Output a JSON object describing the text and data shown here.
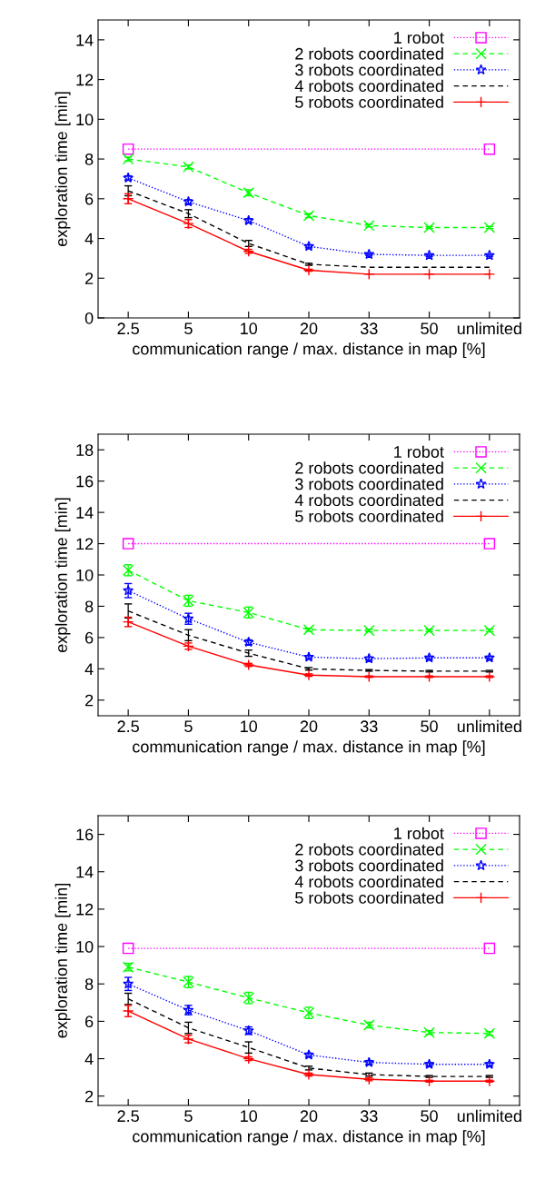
{
  "chart_data": [
    {
      "type": "line",
      "xlabel": "communication range / max. distance in map [%]",
      "ylabel": "exploration time [min]",
      "categories": [
        "2.5",
        "5",
        "10",
        "20",
        "33",
        "50",
        "unlimited"
      ],
      "ylim": [
        0,
        15
      ],
      "yticks": [
        0,
        2,
        4,
        6,
        8,
        10,
        12,
        14
      ],
      "legend": "top right",
      "grid": false,
      "series": [
        {
          "name": "1 robot",
          "color": "#ff00ff",
          "marker": "square",
          "line_style": "dotted",
          "values": [
            8.5,
            null,
            null,
            null,
            null,
            null,
            8.5
          ]
        },
        {
          "name": "2 robots coordinated",
          "color": "#00ff00",
          "marker": "x",
          "line_style": "dashed",
          "values": [
            8.0,
            7.6,
            6.3,
            5.15,
            4.65,
            4.55,
            4.55
          ],
          "errors": [
            0.1,
            0.1,
            0.15,
            0.1,
            0.07,
            0.05,
            0.05
          ]
        },
        {
          "name": "3 robots coordinated",
          "color": "#0000ff",
          "marker": "star",
          "line_style": "dotted",
          "values": [
            7.05,
            5.85,
            4.9,
            3.6,
            3.2,
            3.15,
            3.15
          ],
          "errors": [
            0.1,
            0.1,
            0.1,
            0.07,
            0.05,
            0.05,
            0.05
          ]
        },
        {
          "name": "4 robots coordinated",
          "color": "#000000",
          "marker": "none",
          "line_style": "dashed",
          "values": [
            6.4,
            5.25,
            3.75,
            2.7,
            2.55,
            2.55,
            2.55
          ],
          "errors": [
            0.25,
            0.2,
            0.15,
            0.05,
            null,
            null,
            null
          ]
        },
        {
          "name": "5 robots coordinated",
          "color": "#ff0000",
          "marker": "cross",
          "line_style": "solid",
          "values": [
            6.0,
            4.75,
            3.35,
            2.4,
            2.2,
            2.2,
            2.2
          ],
          "errors": [
            0.25,
            0.2,
            0.1,
            0.05,
            null,
            null,
            null
          ]
        }
      ]
    },
    {
      "type": "line",
      "xlabel": "communication range / max. distance in map [%]",
      "ylabel": "exploration time [min]",
      "categories": [
        "2.5",
        "5",
        "10",
        "20",
        "33",
        "50",
        "unlimited"
      ],
      "ylim": [
        1,
        19
      ],
      "yticks": [
        2,
        4,
        6,
        8,
        10,
        12,
        14,
        16,
        18
      ],
      "legend": "top right",
      "grid": false,
      "series": [
        {
          "name": "1 robot",
          "color": "#ff00ff",
          "marker": "square",
          "line_style": "dotted",
          "values": [
            12.0,
            null,
            null,
            null,
            null,
            null,
            12.0
          ]
        },
        {
          "name": "2 robots coordinated",
          "color": "#00ff00",
          "marker": "x",
          "line_style": "dashed",
          "values": [
            10.3,
            8.35,
            7.6,
            6.5,
            6.45,
            6.45,
            6.45
          ],
          "errors": [
            0.35,
            0.35,
            0.35,
            0.1,
            0.08,
            0.08,
            0.08
          ]
        },
        {
          "name": "3 robots coordinated",
          "color": "#0000ff",
          "marker": "star",
          "line_style": "dotted",
          "values": [
            9.0,
            7.2,
            5.7,
            4.75,
            4.65,
            4.7,
            4.7
          ],
          "errors": [
            0.45,
            0.35,
            0.15,
            0.1,
            0.1,
            0.1,
            0.1
          ]
        },
        {
          "name": "4 robots coordinated",
          "color": "#000000",
          "marker": "none",
          "line_style": "dashed",
          "values": [
            7.7,
            6.15,
            5.0,
            4.0,
            3.9,
            3.85,
            3.85
          ],
          "errors": [
            0.45,
            0.35,
            0.2,
            0.08,
            0.05,
            0.05,
            0.05
          ]
        },
        {
          "name": "5 robots coordinated",
          "color": "#ff0000",
          "marker": "cross",
          "line_style": "solid",
          "values": [
            7.0,
            5.45,
            4.25,
            3.6,
            3.5,
            3.5,
            3.5
          ],
          "errors": [
            0.3,
            0.2,
            0.1,
            0.08,
            0.05,
            0.05,
            0.05
          ]
        }
      ]
    },
    {
      "type": "line",
      "xlabel": "communication range / max. distance in map [%]",
      "ylabel": "exploration time [min]",
      "categories": [
        "2.5",
        "5",
        "10",
        "20",
        "33",
        "50",
        "unlimited"
      ],
      "ylim": [
        1.5,
        17
      ],
      "yticks": [
        2,
        4,
        6,
        8,
        10,
        12,
        14,
        16
      ],
      "legend": "top right",
      "grid": false,
      "series": [
        {
          "name": "1 robot",
          "color": "#ff00ff",
          "marker": "square",
          "line_style": "dotted",
          "values": [
            9.9,
            null,
            null,
            null,
            null,
            null,
            9.9
          ]
        },
        {
          "name": "2 robots coordinated",
          "color": "#00ff00",
          "marker": "x",
          "line_style": "dashed",
          "values": [
            8.9,
            8.1,
            7.25,
            6.45,
            5.8,
            5.4,
            5.35
          ],
          "errors": [
            0.2,
            0.3,
            0.3,
            0.3,
            0.15,
            0.1,
            0.1
          ]
        },
        {
          "name": "3 robots coordinated",
          "color": "#0000ff",
          "marker": "star",
          "line_style": "dotted",
          "values": [
            8.0,
            6.6,
            5.5,
            4.2,
            3.8,
            3.7,
            3.7
          ],
          "errors": [
            0.35,
            0.25,
            0.2,
            0.1,
            0.1,
            0.08,
            0.08
          ]
        },
        {
          "name": "4 robots coordinated",
          "color": "#000000",
          "marker": "none",
          "line_style": "dashed",
          "values": [
            7.2,
            5.65,
            4.6,
            3.5,
            3.15,
            3.05,
            3.05
          ],
          "errors": [
            0.3,
            0.3,
            0.3,
            0.1,
            0.08,
            0.05,
            0.05
          ]
        },
        {
          "name": "5 robots coordinated",
          "color": "#ff0000",
          "marker": "cross",
          "line_style": "solid",
          "values": [
            6.55,
            5.05,
            4.0,
            3.15,
            2.9,
            2.8,
            2.8
          ],
          "errors": [
            0.3,
            0.2,
            0.1,
            0.08,
            0.08,
            0.05,
            0.05
          ]
        }
      ]
    }
  ]
}
